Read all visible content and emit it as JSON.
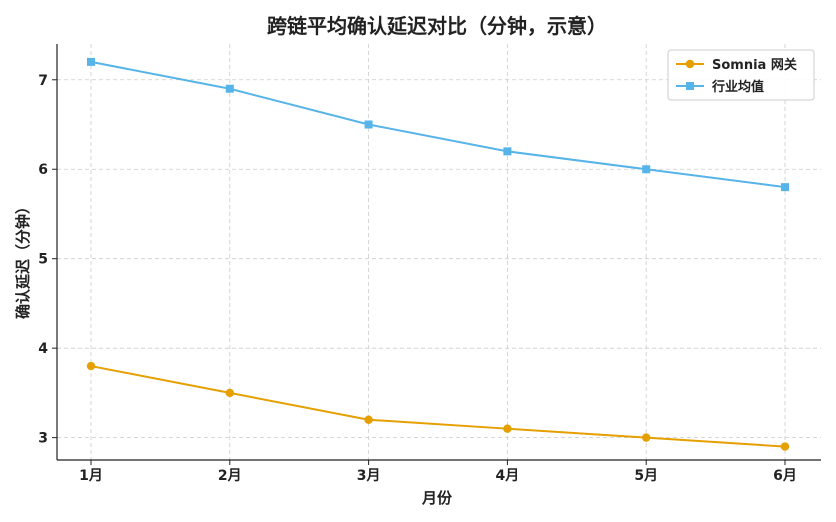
{
  "chart_data": {
    "type": "line",
    "title": "跨链平均确认延迟对比（分钟，示意）",
    "xlabel": "月份",
    "ylabel": "确认延迟（分钟）",
    "categories": [
      "1月",
      "2月",
      "3月",
      "4月",
      "5月",
      "6月"
    ],
    "yticks": [
      3,
      4,
      5,
      6,
      7
    ],
    "ylim": [
      2.75,
      7.4
    ],
    "grid": true,
    "legend_position": "top-right",
    "series": [
      {
        "name": "Somnia 网关",
        "values": [
          3.8,
          3.5,
          3.2,
          3.1,
          3.0,
          2.9
        ],
        "color": "#E69F00",
        "marker": "circle"
      },
      {
        "name": "行业均值",
        "values": [
          7.2,
          6.9,
          6.5,
          6.2,
          6.0,
          5.8
        ],
        "color": "#56B4E9",
        "marker": "square"
      }
    ]
  }
}
